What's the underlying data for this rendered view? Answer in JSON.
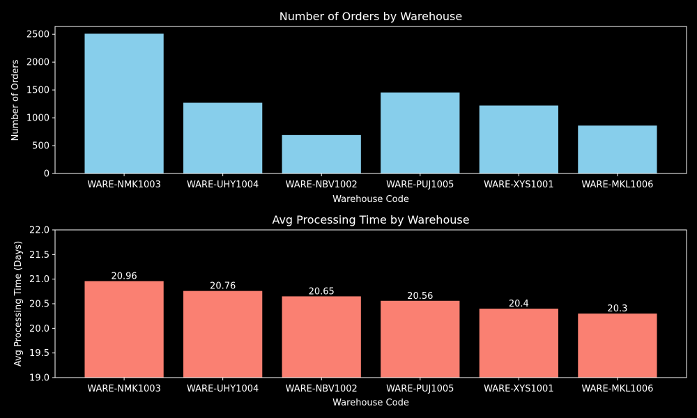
{
  "chart_data": [
    {
      "type": "bar",
      "title": "Number of Orders by Warehouse",
      "xlabel": "Warehouse Code",
      "ylabel": "Number of Orders",
      "categories": [
        "WARE-NMK1003",
        "WARE-UHY1004",
        "WARE-NBV1002",
        "WARE-PUJ1005",
        "WARE-XYS1001",
        "WARE-MKL1006"
      ],
      "values": [
        2510,
        1270,
        690,
        1455,
        1220,
        860
      ],
      "ylim": [
        0,
        2640
      ],
      "yticks": [
        0,
        500,
        1000,
        1500,
        2000,
        2500
      ],
      "color": "#87ceeb",
      "grid": false,
      "show_data_labels": false
    },
    {
      "type": "bar",
      "title": "Avg Processing Time by Warehouse",
      "xlabel": "Warehouse Code",
      "ylabel": "Avg Processing Time (Days)",
      "categories": [
        "WARE-NMK1003",
        "WARE-UHY1004",
        "WARE-NBV1002",
        "WARE-PUJ1005",
        "WARE-XYS1001",
        "WARE-MKL1006"
      ],
      "values": [
        20.96,
        20.76,
        20.65,
        20.56,
        20.4,
        20.3
      ],
      "data_labels": [
        "20.96",
        "20.76",
        "20.65",
        "20.56",
        "20.4",
        "20.3"
      ],
      "ylim": [
        19.0,
        22.0
      ],
      "yticks": [
        19.0,
        19.5,
        20.0,
        20.5,
        21.0,
        21.5,
        22.0
      ],
      "ytick_labels": [
        "19.0",
        "19.5",
        "20.0",
        "20.5",
        "21.0",
        "21.5",
        "22.0"
      ],
      "color": "#fa8072",
      "grid": false,
      "show_data_labels": true
    }
  ]
}
